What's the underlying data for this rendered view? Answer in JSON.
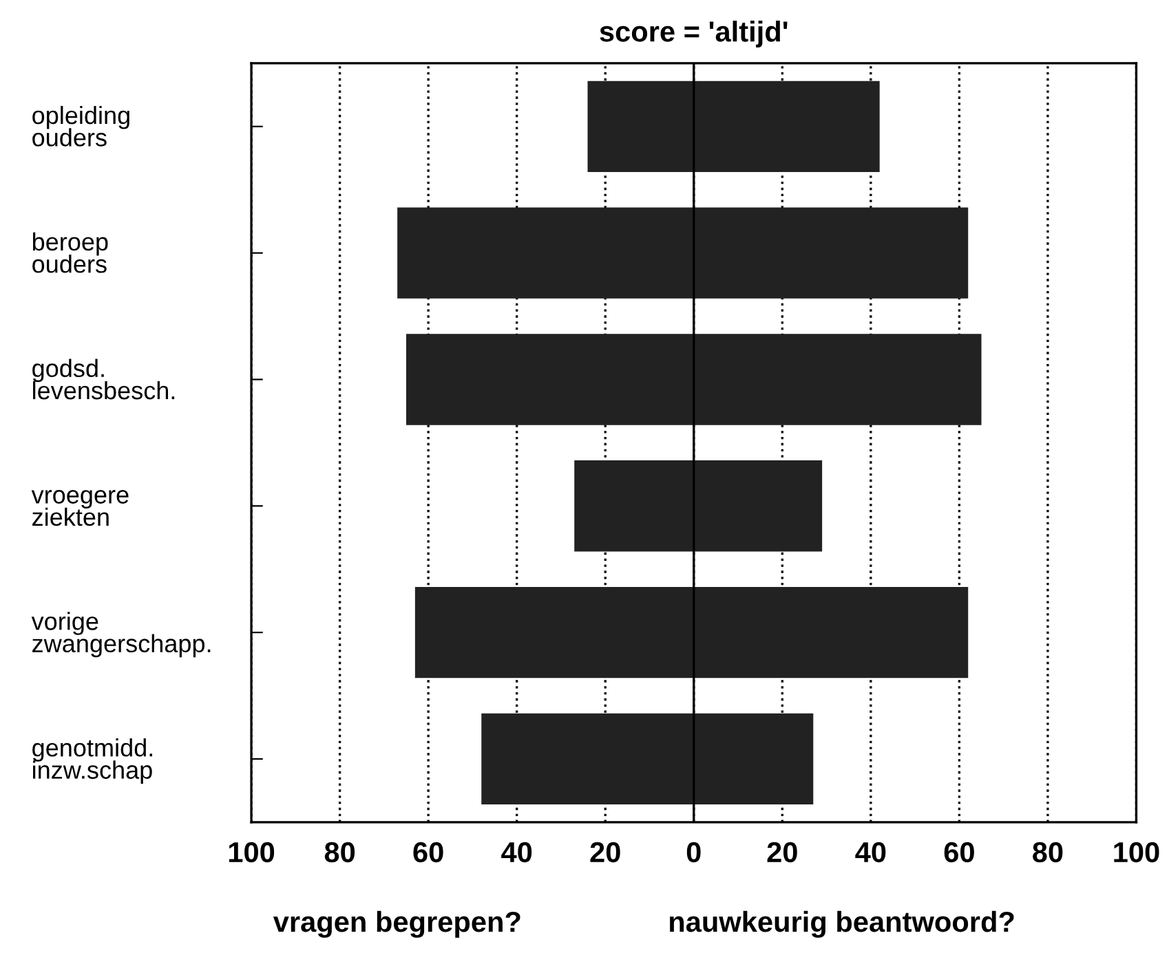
{
  "chart_data": {
    "type": "bar",
    "orientation": "horizontal",
    "title": "score = 'altijd'",
    "categories": [
      "opleiding\nouders",
      "beroep\nouders",
      "godsd.\nlevensbesch.",
      "vroegere\nziekten",
      "vorige\nzwangerschapp.",
      "genotmidd.\ninzw.schap"
    ],
    "stacked": true,
    "series": [
      {
        "color": "#222222",
        "values": [
          -24,
          -67,
          -65,
          -27,
          -63,
          -48
        ]
      },
      {
        "color": "#222222",
        "values": [
          42,
          62,
          65,
          29,
          62,
          27
        ]
      }
    ],
    "xlim": [
      -100,
      100
    ],
    "xticks": [
      {
        "value": -100,
        "label": "100"
      },
      {
        "value": -80,
        "label": "80"
      },
      {
        "value": -60,
        "label": "60"
      },
      {
        "value": -40,
        "label": "40"
      },
      {
        "value": -20,
        "label": "20"
      },
      0,
      20,
      40,
      60,
      80,
      100
    ],
    "ref_lines": [
      {
        "axis": "x",
        "value": 0,
        "color": "#000000",
        "line_style": "solid"
      }
    ],
    "grid": "x",
    "line_style": "dotted",
    "legend": false,
    "annotations": [
      "vragen begrepen?",
      "nauwkeurig beantwoord?"
    ]
  }
}
